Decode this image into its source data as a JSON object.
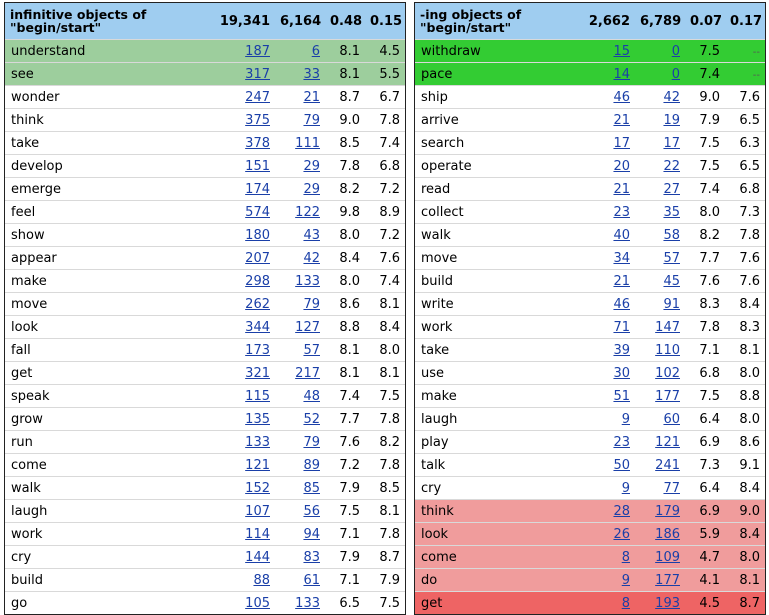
{
  "left": {
    "header": {
      "title_line1": "infinitive objects of",
      "title_line2": "\"begin/start\"",
      "c1": "19,341",
      "c2": "6,164",
      "c3": "0.48",
      "c4": "0.15"
    },
    "rows": [
      {
        "word": "understand",
        "c1": "187",
        "c2": "6",
        "c3": "8.1",
        "c4": "4.5",
        "hl": "green-soft"
      },
      {
        "word": "see",
        "c1": "317",
        "c2": "33",
        "c3": "8.1",
        "c4": "5.5",
        "hl": "green-soft"
      },
      {
        "word": "wonder",
        "c1": "247",
        "c2": "21",
        "c3": "8.7",
        "c4": "6.7",
        "hl": ""
      },
      {
        "word": "think",
        "c1": "375",
        "c2": "79",
        "c3": "9.0",
        "c4": "7.8",
        "hl": ""
      },
      {
        "word": "take",
        "c1": "378",
        "c2": "111",
        "c3": "8.5",
        "c4": "7.4",
        "hl": ""
      },
      {
        "word": "develop",
        "c1": "151",
        "c2": "29",
        "c3": "7.8",
        "c4": "6.8",
        "hl": ""
      },
      {
        "word": "emerge",
        "c1": "174",
        "c2": "29",
        "c3": "8.2",
        "c4": "7.2",
        "hl": ""
      },
      {
        "word": "feel",
        "c1": "574",
        "c2": "122",
        "c3": "9.8",
        "c4": "8.9",
        "hl": ""
      },
      {
        "word": "show",
        "c1": "180",
        "c2": "43",
        "c3": "8.0",
        "c4": "7.2",
        "hl": ""
      },
      {
        "word": "appear",
        "c1": "207",
        "c2": "42",
        "c3": "8.4",
        "c4": "7.6",
        "hl": ""
      },
      {
        "word": "make",
        "c1": "298",
        "c2": "133",
        "c3": "8.0",
        "c4": "7.4",
        "hl": ""
      },
      {
        "word": "move",
        "c1": "262",
        "c2": "79",
        "c3": "8.6",
        "c4": "8.1",
        "hl": ""
      },
      {
        "word": "look",
        "c1": "344",
        "c2": "127",
        "c3": "8.8",
        "c4": "8.4",
        "hl": ""
      },
      {
        "word": "fall",
        "c1": "173",
        "c2": "57",
        "c3": "8.1",
        "c4": "8.0",
        "hl": ""
      },
      {
        "word": "get",
        "c1": "321",
        "c2": "217",
        "c3": "8.1",
        "c4": "8.1",
        "hl": ""
      },
      {
        "word": "speak",
        "c1": "115",
        "c2": "48",
        "c3": "7.4",
        "c4": "7.5",
        "hl": ""
      },
      {
        "word": "grow",
        "c1": "135",
        "c2": "52",
        "c3": "7.7",
        "c4": "7.8",
        "hl": ""
      },
      {
        "word": "run",
        "c1": "133",
        "c2": "79",
        "c3": "7.6",
        "c4": "8.2",
        "hl": ""
      },
      {
        "word": "come",
        "c1": "121",
        "c2": "89",
        "c3": "7.2",
        "c4": "7.8",
        "hl": ""
      },
      {
        "word": "walk",
        "c1": "152",
        "c2": "85",
        "c3": "7.9",
        "c4": "8.5",
        "hl": ""
      },
      {
        "word": "laugh",
        "c1": "107",
        "c2": "56",
        "c3": "7.5",
        "c4": "8.1",
        "hl": ""
      },
      {
        "word": "work",
        "c1": "114",
        "c2": "94",
        "c3": "7.1",
        "c4": "7.8",
        "hl": ""
      },
      {
        "word": "cry",
        "c1": "144",
        "c2": "83",
        "c3": "7.9",
        "c4": "8.7",
        "hl": ""
      },
      {
        "word": "build",
        "c1": "88",
        "c2": "61",
        "c3": "7.1",
        "c4": "7.9",
        "hl": ""
      },
      {
        "word": "go",
        "c1": "105",
        "c2": "133",
        "c3": "6.5",
        "c4": "7.5",
        "hl": ""
      }
    ]
  },
  "right": {
    "header": {
      "title_line1": "-ing objects of",
      "title_line2": "\"begin/start\"",
      "c1": "2,662",
      "c2": "6,789",
      "c3": "0.07",
      "c4": "0.17"
    },
    "rows": [
      {
        "word": "withdraw",
        "c1": "15",
        "c2": "0",
        "c3": "7.5",
        "c4": "--",
        "hl": "green"
      },
      {
        "word": "pace",
        "c1": "14",
        "c2": "0",
        "c3": "7.4",
        "c4": "--",
        "hl": "green"
      },
      {
        "word": "ship",
        "c1": "46",
        "c2": "42",
        "c3": "9.0",
        "c4": "7.6",
        "hl": ""
      },
      {
        "word": "arrive",
        "c1": "21",
        "c2": "19",
        "c3": "7.9",
        "c4": "6.5",
        "hl": ""
      },
      {
        "word": "search",
        "c1": "17",
        "c2": "17",
        "c3": "7.5",
        "c4": "6.3",
        "hl": ""
      },
      {
        "word": "operate",
        "c1": "20",
        "c2": "22",
        "c3": "7.5",
        "c4": "6.5",
        "hl": ""
      },
      {
        "word": "read",
        "c1": "21",
        "c2": "27",
        "c3": "7.4",
        "c4": "6.8",
        "hl": ""
      },
      {
        "word": "collect",
        "c1": "23",
        "c2": "35",
        "c3": "8.0",
        "c4": "7.3",
        "hl": ""
      },
      {
        "word": "walk",
        "c1": "40",
        "c2": "58",
        "c3": "8.2",
        "c4": "7.8",
        "hl": ""
      },
      {
        "word": "move",
        "c1": "34",
        "c2": "57",
        "c3": "7.7",
        "c4": "7.6",
        "hl": ""
      },
      {
        "word": "build",
        "c1": "21",
        "c2": "45",
        "c3": "7.6",
        "c4": "7.6",
        "hl": ""
      },
      {
        "word": "write",
        "c1": "46",
        "c2": "91",
        "c3": "8.3",
        "c4": "8.4",
        "hl": ""
      },
      {
        "word": "work",
        "c1": "71",
        "c2": "147",
        "c3": "7.8",
        "c4": "8.3",
        "hl": ""
      },
      {
        "word": "take",
        "c1": "39",
        "c2": "110",
        "c3": "7.1",
        "c4": "8.1",
        "hl": ""
      },
      {
        "word": "use",
        "c1": "30",
        "c2": "102",
        "c3": "6.8",
        "c4": "8.0",
        "hl": ""
      },
      {
        "word": "make",
        "c1": "51",
        "c2": "177",
        "c3": "7.5",
        "c4": "8.8",
        "hl": ""
      },
      {
        "word": "laugh",
        "c1": "9",
        "c2": "60",
        "c3": "6.4",
        "c4": "8.0",
        "hl": ""
      },
      {
        "word": "play",
        "c1": "23",
        "c2": "121",
        "c3": "6.9",
        "c4": "8.6",
        "hl": ""
      },
      {
        "word": "talk",
        "c1": "50",
        "c2": "241",
        "c3": "7.3",
        "c4": "9.1",
        "hl": ""
      },
      {
        "word": "cry",
        "c1": "9",
        "c2": "77",
        "c3": "6.4",
        "c4": "8.4",
        "hl": ""
      },
      {
        "word": "think",
        "c1": "28",
        "c2": "179",
        "c3": "6.9",
        "c4": "9.0",
        "hl": "pink"
      },
      {
        "word": "look",
        "c1": "26",
        "c2": "186",
        "c3": "5.9",
        "c4": "8.4",
        "hl": "pink"
      },
      {
        "word": "come",
        "c1": "8",
        "c2": "109",
        "c3": "4.7",
        "c4": "8.0",
        "hl": "pink"
      },
      {
        "word": "do",
        "c1": "9",
        "c2": "177",
        "c3": "4.1",
        "c4": "8.1",
        "hl": "pink"
      },
      {
        "word": "get",
        "c1": "8",
        "c2": "193",
        "c3": "4.5",
        "c4": "8.7",
        "hl": "red"
      }
    ]
  }
}
